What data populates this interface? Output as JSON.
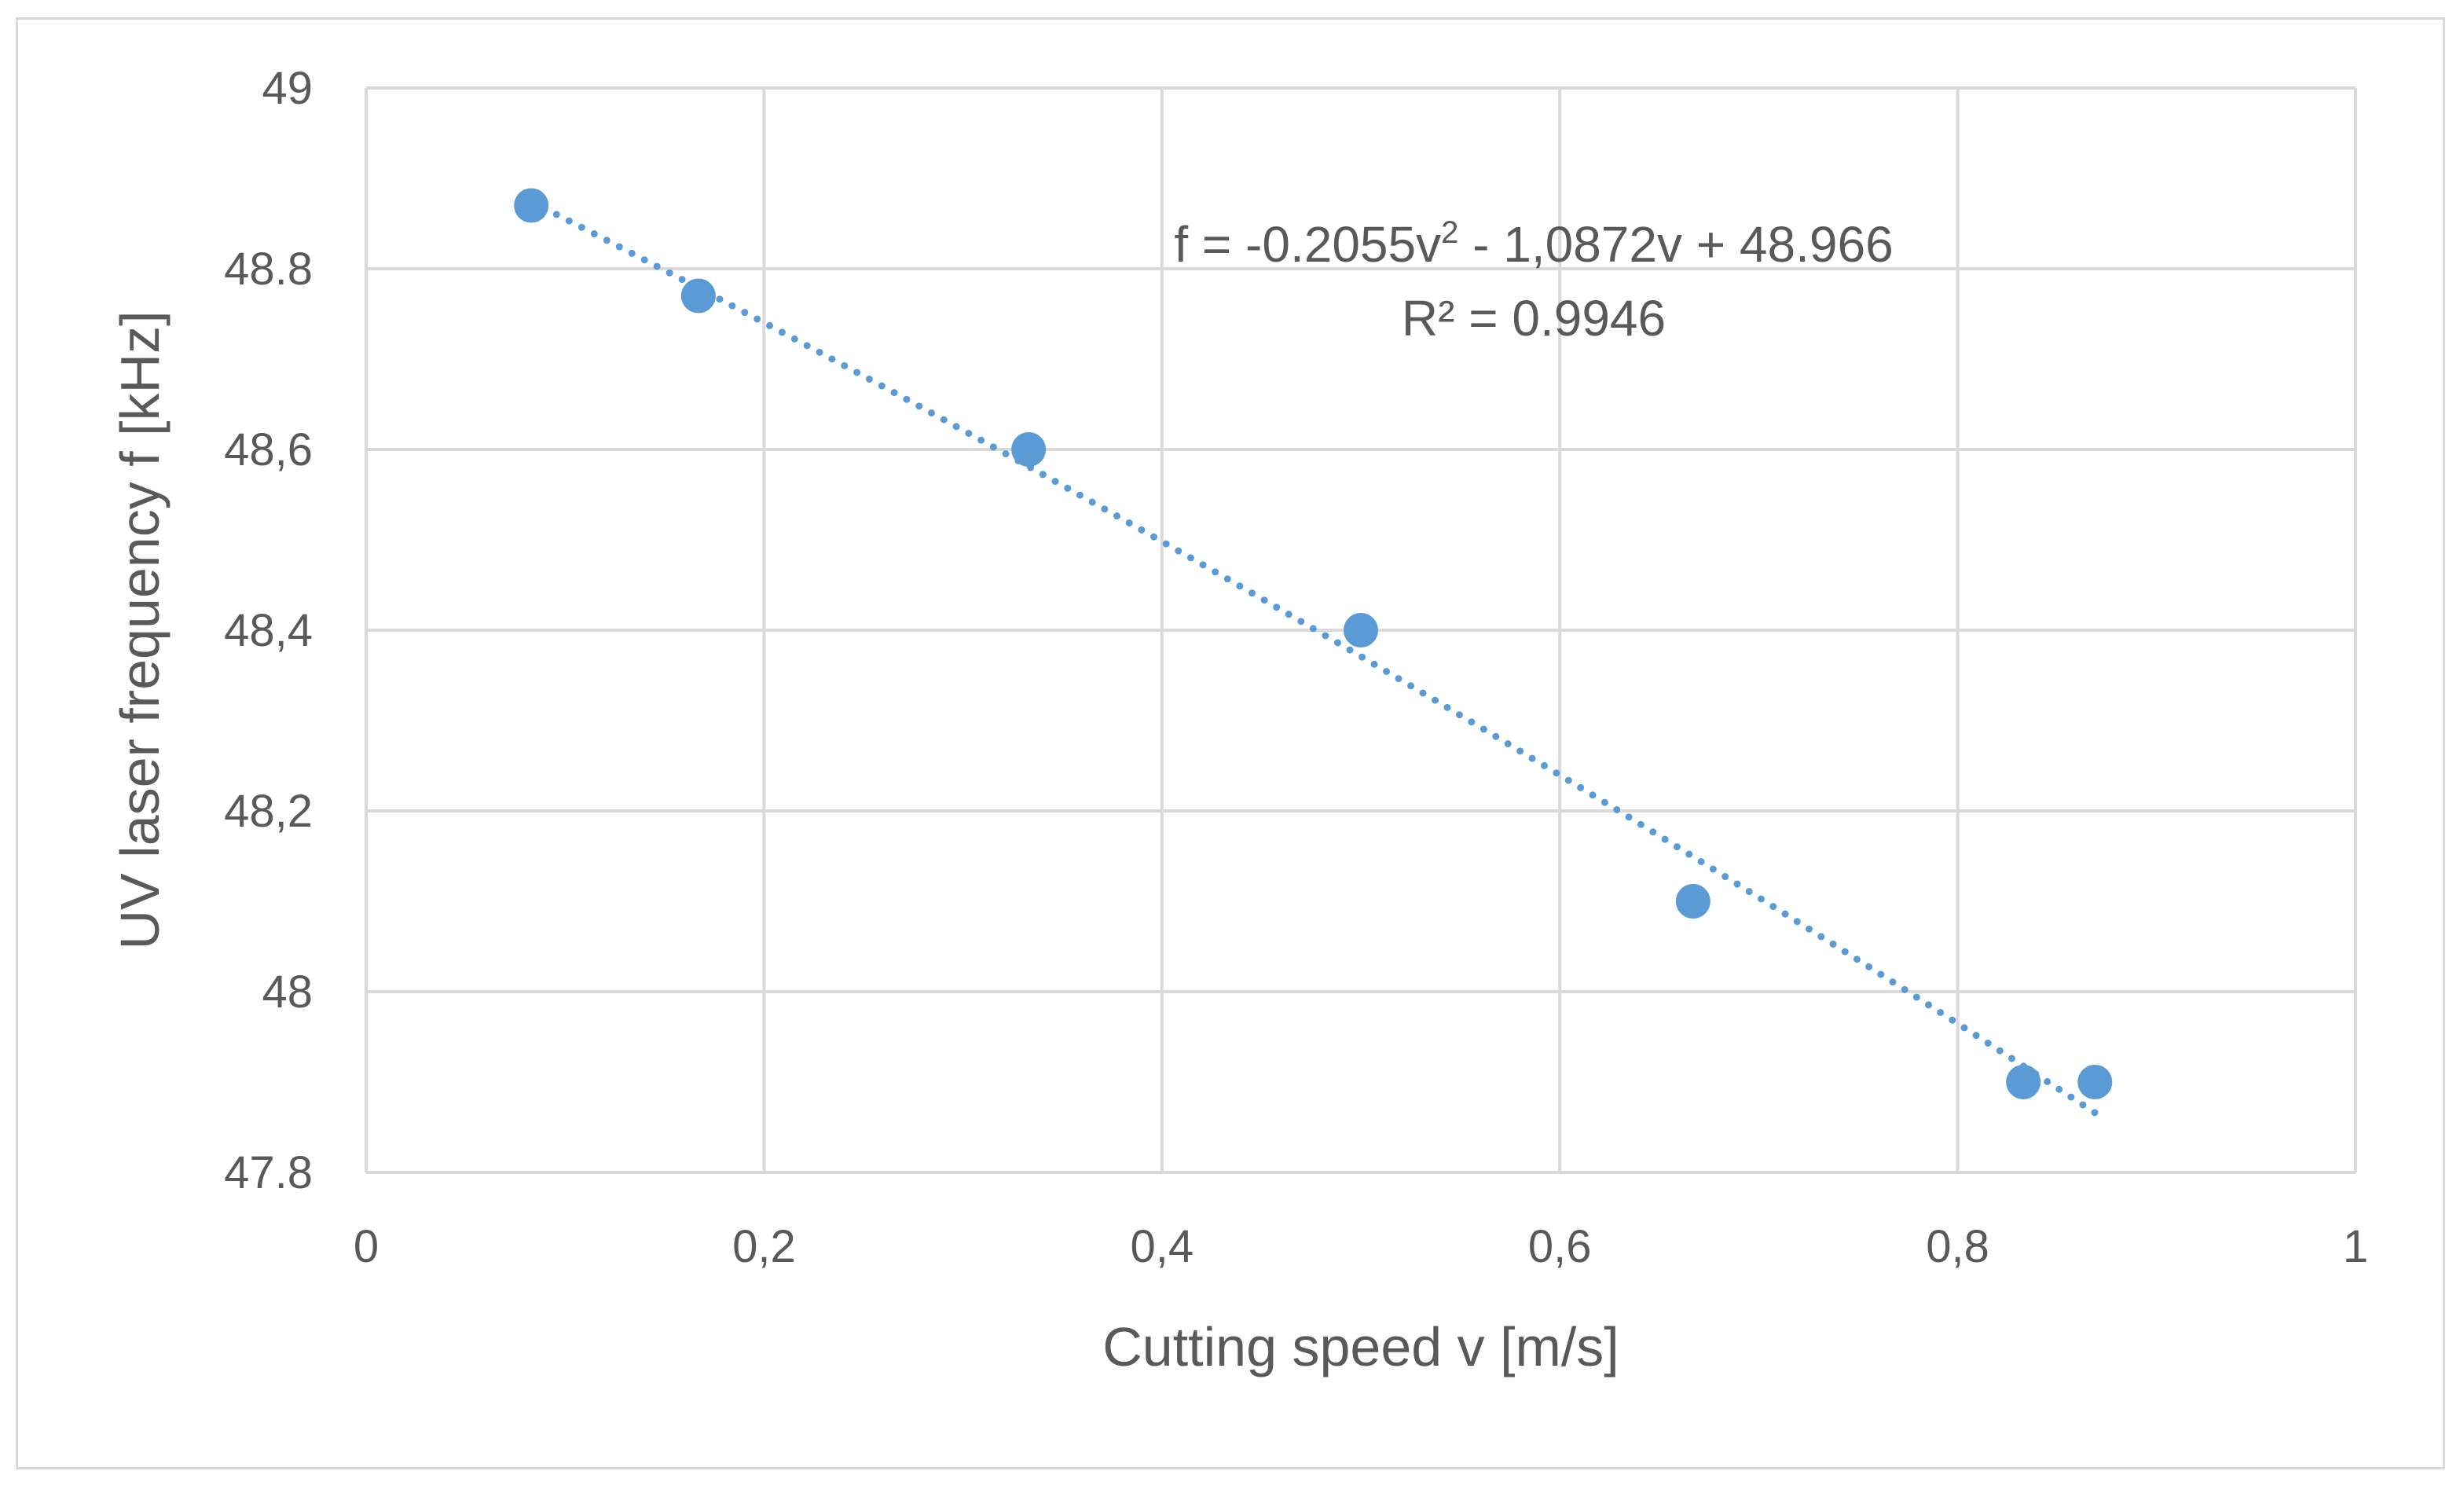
{
  "chart_data": {
    "type": "scatter",
    "title": "",
    "xlabel": "Cutting speed v [m/s]",
    "ylabel": "UV laser frequency f [kHz]",
    "xlim": [
      0,
      1
    ],
    "ylim": [
      47.8,
      49
    ],
    "x_ticks": [
      0,
      0.2,
      0.4,
      0.6,
      0.8,
      1
    ],
    "x_tick_labels": [
      "0",
      "0,2",
      "0,4",
      "0,6",
      "0,8",
      "1"
    ],
    "y_ticks": [
      47.8,
      48,
      48.2,
      48.4,
      48.6,
      48.8,
      49
    ],
    "y_tick_labels": [
      "47.8",
      "48",
      "48,2",
      "48,4",
      "48,6",
      "48.8",
      "49"
    ],
    "grid": true,
    "series": [
      {
        "name": "measured",
        "color": "#5b9bd5",
        "x": [
          0.083,
          0.167,
          0.333,
          0.5,
          0.667,
          0.833,
          0.869
        ],
        "y": [
          48.87,
          48.77,
          48.6,
          48.4,
          48.1,
          47.9,
          47.9
        ]
      }
    ],
    "trendline": {
      "type": "polynomial",
      "order": 2,
      "coefficients": [
        -0.2055,
        -1.0872,
        48.966
      ],
      "x_range": [
        0.083,
        0.869
      ],
      "color": "#5b9bd5",
      "equation_prefix": "f = -0.2055v",
      "equation_exponent": "2",
      "equation_suffix": " - 1,0872v + 48.966",
      "r_squared": "R² = 0.9946"
    }
  }
}
